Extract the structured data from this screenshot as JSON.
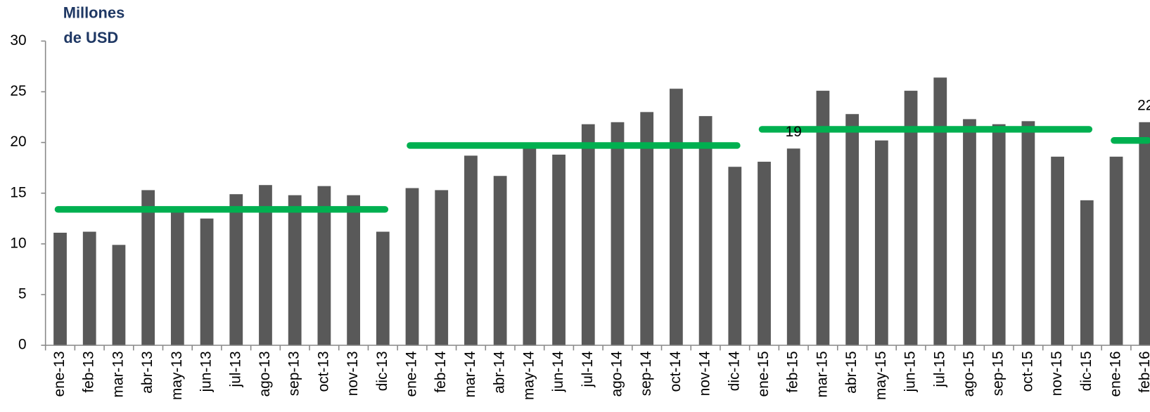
{
  "chart_data": {
    "type": "bar",
    "ylabel": [
      "Millones",
      "de USD"
    ],
    "categories": [
      "ene-13",
      "feb-13",
      "mar-13",
      "abr-13",
      "may-13",
      "jun-13",
      "jul-13",
      "ago-13",
      "sep-13",
      "oct-13",
      "nov-13",
      "dic-13",
      "ene-14",
      "feb-14",
      "mar-14",
      "abr-14",
      "may-14",
      "jun-14",
      "jul-14",
      "ago-14",
      "sep-14",
      "oct-14",
      "nov-14",
      "dic-14",
      "ene-15",
      "feb-15",
      "mar-15",
      "abr-15",
      "may-15",
      "jun-15",
      "jul-15",
      "ago-15",
      "sep-15",
      "oct-15",
      "nov-15",
      "dic-15",
      "ene-16",
      "feb-16"
    ],
    "values": [
      11.1,
      11.2,
      9.9,
      15.3,
      13.3,
      12.5,
      14.9,
      15.8,
      14.8,
      15.7,
      14.8,
      11.2,
      15.5,
      15.3,
      18.7,
      16.7,
      19.7,
      18.8,
      21.8,
      22.0,
      23.0,
      25.3,
      22.6,
      17.6,
      18.1,
      19.4,
      25.1,
      22.8,
      20.2,
      25.1,
      26.4,
      22.3,
      21.8,
      22.1,
      18.6,
      14.3,
      18.6,
      22.0
    ],
    "value_labels": [
      null,
      null,
      null,
      null,
      null,
      null,
      null,
      null,
      null,
      null,
      null,
      null,
      null,
      null,
      null,
      null,
      null,
      null,
      null,
      null,
      null,
      null,
      null,
      null,
      null,
      "19",
      null,
      null,
      null,
      null,
      null,
      null,
      null,
      null,
      null,
      null,
      null,
      "22"
    ],
    "color": "#595959",
    "averages": {
      "color": "#00b050",
      "segments": [
        {
          "start": "ene-13",
          "end": "dic-13",
          "value": 13.4
        },
        {
          "start": "ene-14",
          "end": "dic-14",
          "value": 19.7
        },
        {
          "start": "ene-15",
          "end": "dic-15",
          "value": 21.3
        },
        {
          "start": "ene-16",
          "end": "feb-16",
          "value": 20.2
        }
      ]
    },
    "ylim": [
      0,
      30
    ],
    "yticks": [
      0,
      5,
      10,
      15,
      20,
      25,
      30
    ]
  }
}
